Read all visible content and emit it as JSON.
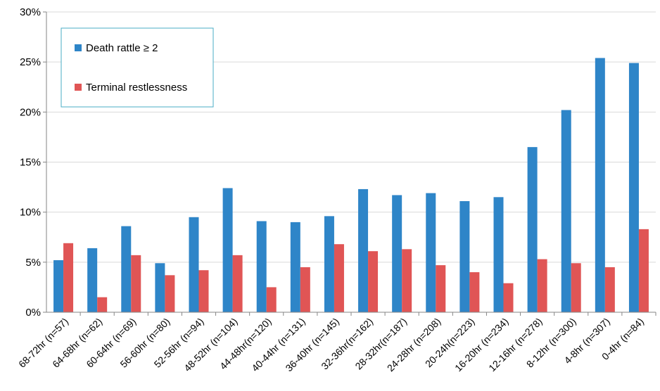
{
  "chart_data": {
    "type": "bar",
    "title": "",
    "xlabel": "",
    "ylabel": "",
    "ylim": [
      0,
      30
    ],
    "y_tick_values": [
      0,
      5,
      10,
      15,
      20,
      25,
      30
    ],
    "y_tick_labels": [
      "0%",
      "5%",
      "10%",
      "15%",
      "20%",
      "25%",
      "30%"
    ],
    "grid": "horizontal",
    "legend_position": "top-left",
    "categories": [
      "68-72hr (n=57)",
      "64-68hr (n=62)",
      "60-64hr (n=69)",
      "56-60hr (n=80)",
      "52-56hr (n=94)",
      "48-52hr (n=104)",
      "44-48hr(n=120)",
      "40-44hr (n=131)",
      "36-40hr (n=145)",
      "32-36hr(n=162)",
      "28-32hr(n=187)",
      "24-28hr (n=208)",
      "20-24h(n=223)",
      "16-20hr (n=234)",
      "12-16hr (n=278)",
      "8-12hr (n=300)",
      "4-8hr (n=307)",
      "0-4hr (n=84)"
    ],
    "series": [
      {
        "name": "Death rattle ≥ 2",
        "color": "#2e85c8",
        "values": [
          5.2,
          6.4,
          8.6,
          4.9,
          9.5,
          12.4,
          9.1,
          9.0,
          9.6,
          12.3,
          11.7,
          11.9,
          11.1,
          11.5,
          16.5,
          20.2,
          25.4,
          24.9
        ]
      },
      {
        "name": "Terminal restlessness",
        "color": "#e05555",
        "values": [
          6.9,
          1.5,
          5.7,
          3.7,
          4.2,
          5.7,
          2.5,
          4.5,
          6.8,
          6.1,
          6.3,
          4.7,
          4.0,
          2.9,
          5.3,
          4.9,
          4.5,
          8.3
        ]
      }
    ]
  }
}
